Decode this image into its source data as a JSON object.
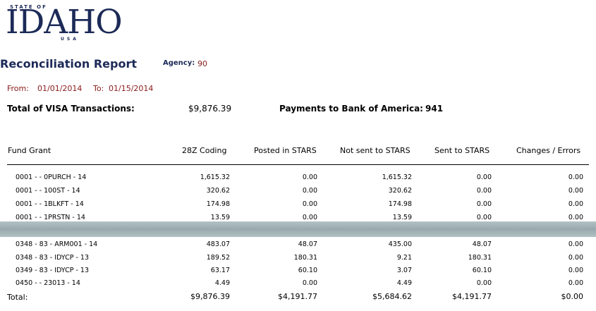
{
  "logo": {
    "top": "STATE OF",
    "main": "IDAHO",
    "sub": "USA"
  },
  "report": {
    "title": "Reconciliation Report",
    "agency_label": "Agency:",
    "agency_value": "90",
    "from_label": "From:",
    "from_value": "01/01/2014",
    "to_label": "To:",
    "to_value": "01/15/2014",
    "total_visa_label": "Total of VISA Transactions:",
    "total_visa_value": "$9,876.39",
    "payments_label": "Payments to Bank of America:",
    "payments_value": "941"
  },
  "table": {
    "headers": {
      "fund_grant": "Fund  Grant",
      "coding": "28Z Coding",
      "posted": "Posted in STARS",
      "not_sent": "Not sent to STARS",
      "sent": "Sent to STARS",
      "changes": "Changes / Errors"
    },
    "rows": [
      [
        "0001 -   - 0PURCH - 14",
        "1,615.32",
        "0.00",
        "1,615.32",
        "0.00",
        "0.00"
      ],
      [
        "0001 -   - 100ST - 14",
        "320.62",
        "0.00",
        "320.62",
        "0.00",
        "0.00"
      ],
      [
        "0001 -   - 1BLKFT - 14",
        "174.98",
        "0.00",
        "174.98",
        "0.00",
        "0.00"
      ],
      [
        "0001 -   - 1PRSTN - 14",
        "13.59",
        "0.00",
        "13.59",
        "0.00",
        "0.00"
      ],
      [
        "0348 - 83 - ARM001 - 14",
        "483.07",
        "48.07",
        "435.00",
        "48.07",
        "0.00"
      ],
      [
        "0348 - 83 - IDYCP - 13",
        "189.52",
        "180.31",
        "9.21",
        "180.31",
        "0.00"
      ],
      [
        "0349 - 83 - IDYCP - 13",
        "63.17",
        "60.10",
        "3.07",
        "60.10",
        "0.00"
      ],
      [
        "0450 -   - 23013 - 14",
        "4.49",
        "0.00",
        "4.49",
        "0.00",
        "0.00"
      ]
    ],
    "total": {
      "label": "Total:",
      "coding": "$9,876.39",
      "posted": "$4,191.77",
      "not_sent": "$5,684.62",
      "sent": "$4,191.77",
      "changes": "$0.00"
    }
  }
}
